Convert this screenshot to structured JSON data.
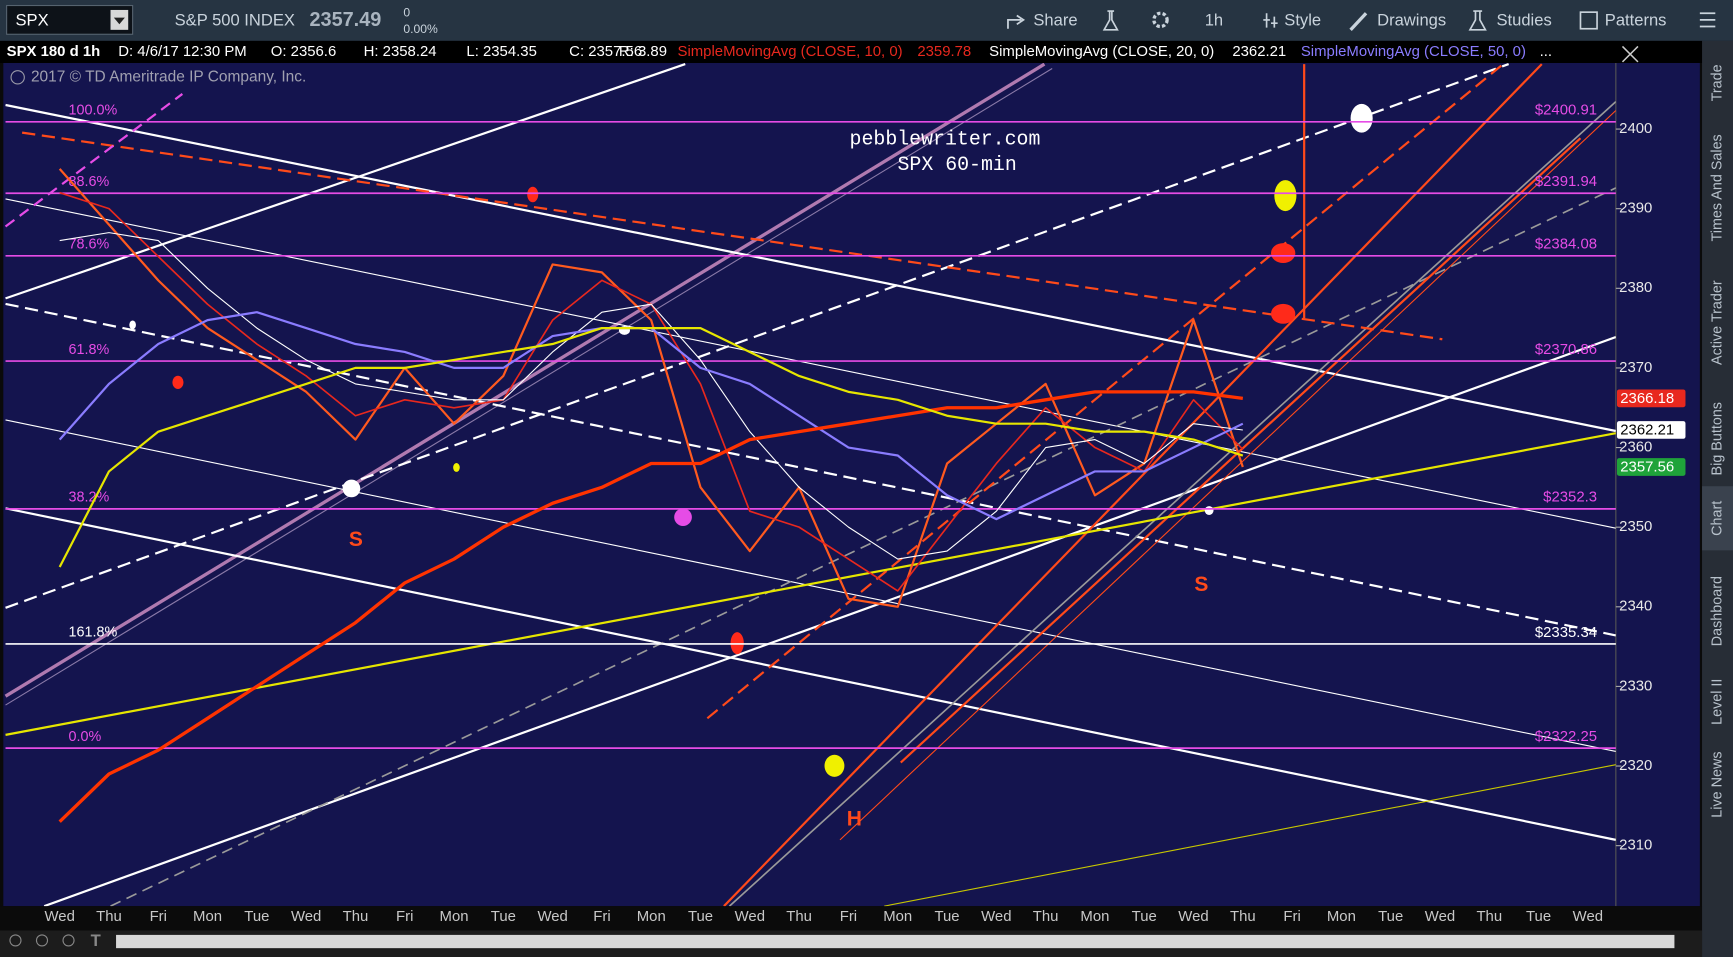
{
  "toolbar": {
    "symbol": "SPX",
    "description": "S&P 500 INDEX",
    "last": "2357.49",
    "change": "0",
    "change_pct": "0.00%",
    "buttons": [
      "Share",
      "1h",
      "Style",
      "Drawings",
      "Studies",
      "Patterns"
    ]
  },
  "info_bar": {
    "study": "SPX 180 d 1h",
    "date": "D: 4/6/17 12:30 PM",
    "open": "O: 2356.6",
    "high": "H: 2358.24",
    "low": "L: 2354.35",
    "close": "C: 2357.56",
    "range": "R: 3.89",
    "more": "..."
  },
  "copyright": "2017 © TD Ameritrade IP Company, Inc.",
  "side_tabs": [
    "Trade",
    "Times And Sales",
    "Active Trader",
    "Big Buttons",
    "Chart",
    "Dashboard",
    "Level II",
    "Live News"
  ],
  "chart_data": {
    "type": "line",
    "categories": [
      "Wed",
      "Thu",
      "Fri",
      "Mon",
      "Tue",
      "Wed",
      "Thu",
      "Fri",
      "Mon",
      "Tue",
      "Wed",
      "Fri",
      "Mon",
      "Tue",
      "Wed",
      "Thu",
      "Fri",
      "Mon",
      "Tue",
      "Wed",
      "Thu",
      "Mon",
      "Tue",
      "Wed",
      "Thu",
      "Fri",
      "Mon",
      "Tue",
      "Wed",
      "Thu",
      "Tue",
      "Wed"
    ],
    "series": [
      {
        "color": "#ff5a1f",
        "line_width": 2,
        "values": [
          2395,
          2388,
          2381,
          2375,
          2371,
          2367,
          2361,
          2370,
          2363,
          2369,
          2383,
          2382,
          2376,
          2355,
          2347,
          2355,
          2341,
          2340,
          2358,
          2363,
          2368,
          2354,
          2358,
          2376,
          2357.56,
          null,
          null,
          null,
          null,
          null,
          null,
          null
        ]
      },
      {
        "name": "SimpleMovingAvg (CLOSE, 10, 0)",
        "legend_value": 2359.78,
        "color": "#e8281e",
        "line_width": 1.5,
        "values": [
          2392,
          2390,
          2384,
          2378,
          2373,
          2369,
          2364,
          2366,
          2365,
          2366,
          2376,
          2381,
          2378,
          2368,
          2352,
          2350,
          2346,
          2342,
          2350,
          2358,
          2365,
          2360,
          2357,
          2366,
          2359.78,
          null,
          null,
          null,
          null,
          null,
          null,
          null
        ]
      },
      {
        "name": "SimpleMovingAvg (CLOSE, 20, 0)",
        "legend_value": 2362.21,
        "color": "#ffffff",
        "line_width": 1,
        "values": [
          2386,
          2387,
          2386,
          2380,
          2375,
          2371,
          2368,
          2367,
          2366,
          2366,
          2372,
          2377,
          2378,
          2371,
          2362,
          2355,
          2350,
          2346,
          2347,
          2352,
          2360,
          2361,
          2358,
          2363,
          2362.21,
          null,
          null,
          null,
          null,
          null,
          null,
          null
        ]
      },
      {
        "name": "SimpleMovingAvg (CLOSE, 50, 0)",
        "color": "#8a7cff",
        "line_width": 2,
        "values": [
          2361,
          2368,
          2373,
          2376,
          2377,
          2375,
          2373,
          2372,
          2370,
          2370,
          2374,
          2375,
          2375,
          2370,
          2368,
          2364,
          2360,
          2359,
          2354,
          2351,
          2354,
          2357,
          2357,
          2360,
          2363,
          null,
          null,
          null,
          null,
          null,
          null,
          null
        ]
      },
      {
        "color": "#ff3300",
        "line_width": 3,
        "values": [
          2313,
          2319,
          2322,
          2326,
          2330,
          2334,
          2338,
          2343,
          2346,
          2350,
          2353,
          2355,
          2358,
          2358,
          2361,
          2362,
          2363,
          2364,
          2365,
          2365,
          2366,
          2367,
          2367,
          2367,
          2366.18,
          null,
          null,
          null,
          null,
          null,
          null,
          null
        ]
      },
      {
        "color": "#e6e600",
        "line_width": 2,
        "values": [
          2345,
          2357,
          2362,
          2364,
          2366,
          2368,
          2370,
          2370,
          2371,
          2372,
          2373,
          2375,
          2375,
          2375,
          2372,
          2369,
          2367,
          2366,
          2364,
          2363,
          2363,
          2362,
          2362,
          2361,
          2359,
          null,
          null,
          null,
          null,
          null,
          null,
          null
        ]
      }
    ],
    "price_labels": [
      {
        "value": 2366.18,
        "color": "#e8281e",
        "text_color": "#ffffff"
      },
      {
        "value": 2362.21,
        "color": "#ffffff",
        "text_color": "#000000"
      },
      {
        "value": 2357.56,
        "color": "#1fa33a",
        "text_color": "#ffffff"
      }
    ],
    "fib_levels": [
      {
        "pct": "100.0%",
        "value": 2400.91,
        "label": "$2400.91",
        "color": "#e64ce6"
      },
      {
        "pct": "88.6%",
        "value": 2391.94,
        "label": "$2391.94",
        "color": "#e64ce6"
      },
      {
        "pct": "78.6%",
        "value": 2384.08,
        "label": "$2384.08",
        "color": "#e64ce6"
      },
      {
        "pct": "61.8%",
        "value": 2370.86,
        "label": "$2370.86",
        "color": "#e64ce6"
      },
      {
        "pct": "38.2%",
        "value": 2352.3,
        "label": "$2352.3",
        "color": "#e64ce6"
      },
      {
        "pct": "161.8%",
        "value": 2335.34,
        "label": "$2335.34",
        "color": "#ffffff"
      },
      {
        "pct": "0.0%",
        "value": 2322.25,
        "label": "$2322.25",
        "color": "#e64ce6"
      }
    ],
    "ylim": [
      2302.4,
      2408.3
    ],
    "yticks": [
      2310,
      2320,
      2330,
      2340,
      2350,
      2360,
      2370,
      2380,
      2390,
      2400
    ],
    "annotations": [
      "pebblewriter.com",
      "SPX 60-min",
      "S",
      "S",
      "H"
    ]
  }
}
